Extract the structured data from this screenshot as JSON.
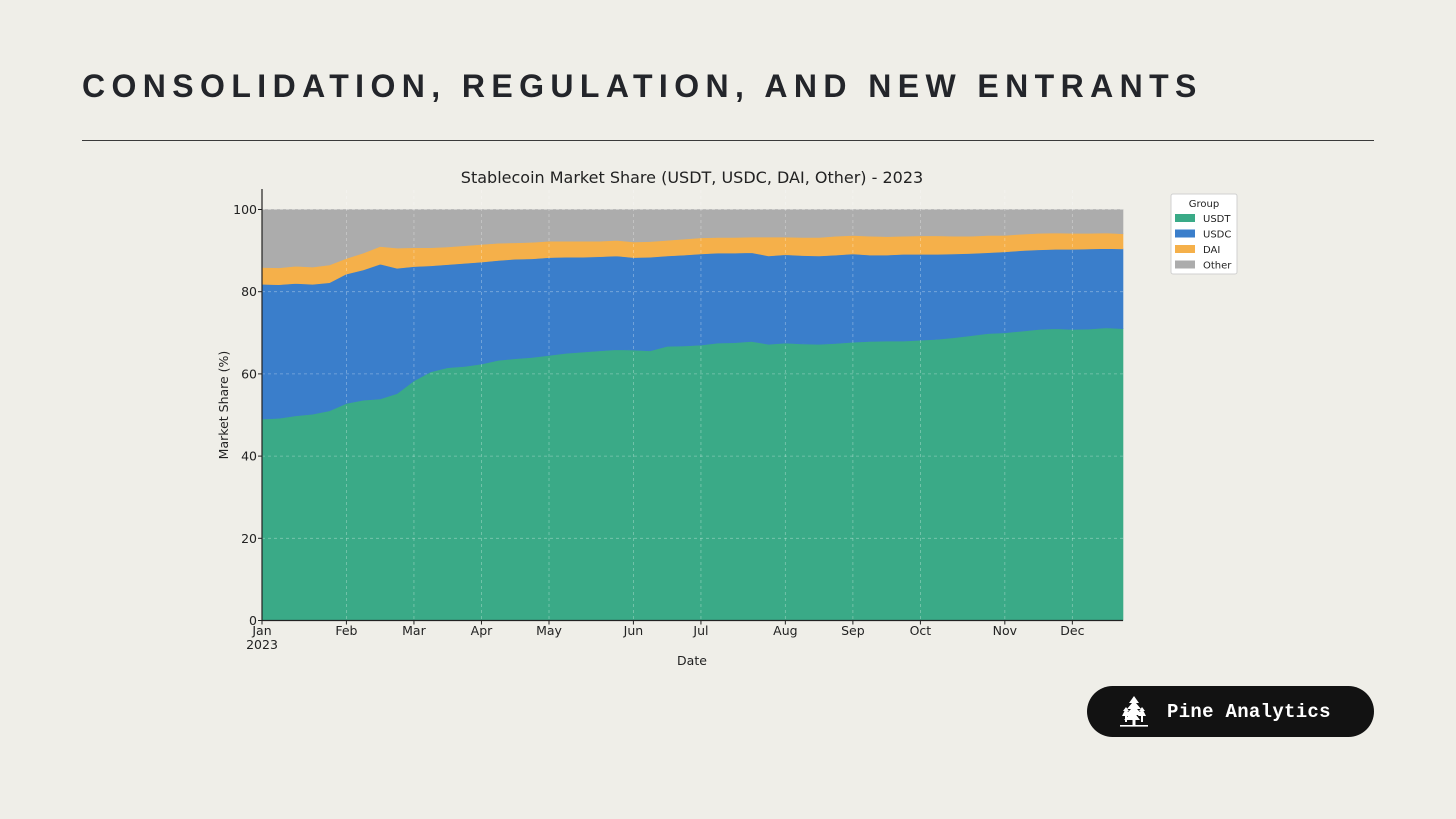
{
  "header": {
    "title": "CONSOLIDATION, REGULATION, AND NEW ENTRANTS"
  },
  "branding": {
    "name": "Pine Analytics",
    "logo_icon": "pine-tree-icon"
  },
  "colors": {
    "background": "#efeee8",
    "USDT": "#3aaa87",
    "USDC": "#3a7ecb",
    "DAI": "#f5b04a",
    "Other": "#acacac"
  },
  "chart_data": {
    "type": "area",
    "stacked": true,
    "title": "Stablecoin Market Share (USDT, USDC, DAI, Other) - 2023",
    "xlabel": "Date",
    "ylabel": "Market Share (%)",
    "ylim": [
      0,
      100
    ],
    "yticks": [
      0,
      20,
      40,
      60,
      80,
      100
    ],
    "xrange_days": [
      0,
      357
    ],
    "xticks": [
      {
        "day": 0,
        "label": "Jan",
        "sublabel": "2023"
      },
      {
        "day": 35,
        "label": "Feb"
      },
      {
        "day": 63,
        "label": "Mar"
      },
      {
        "day": 91,
        "label": "Apr"
      },
      {
        "day": 119,
        "label": "May"
      },
      {
        "day": 154,
        "label": "Jun"
      },
      {
        "day": 182,
        "label": "Jul"
      },
      {
        "day": 217,
        "label": "Aug"
      },
      {
        "day": 245,
        "label": "Sep"
      },
      {
        "day": 273,
        "label": "Oct"
      },
      {
        "day": 308,
        "label": "Nov"
      },
      {
        "day": 336,
        "label": "Dec"
      }
    ],
    "grid": true,
    "legend": {
      "title": "Group",
      "placement": "outside-top-right"
    },
    "x": [
      0,
      7,
      14,
      21,
      28,
      35,
      42,
      49,
      56,
      63,
      70,
      77,
      84,
      91,
      98,
      105,
      112,
      119,
      126,
      133,
      140,
      147,
      154,
      161,
      168,
      175,
      182,
      189,
      196,
      203,
      210,
      217,
      224,
      231,
      238,
      245,
      252,
      259,
      266,
      273,
      280,
      287,
      294,
      301,
      308,
      315,
      322,
      329,
      336,
      343,
      350,
      357
    ],
    "series": [
      {
        "name": "USDT",
        "values": [
          49.0,
          49.2,
          49.8,
          50.2,
          51.0,
          52.8,
          53.6,
          53.9,
          55.2,
          58.3,
          60.5,
          61.5,
          61.8,
          62.4,
          63.3,
          63.7,
          64.0,
          64.5,
          65.0,
          65.3,
          65.6,
          65.9,
          65.8,
          65.6,
          66.7,
          66.8,
          67.0,
          67.5,
          67.6,
          67.9,
          67.2,
          67.5,
          67.3,
          67.2,
          67.4,
          67.7,
          67.9,
          68.0,
          68.0,
          68.2,
          68.4,
          68.8,
          69.3,
          69.8,
          70.0,
          70.4,
          70.8,
          71.0,
          70.8,
          70.9,
          71.2,
          71.0
        ]
      },
      {
        "name": "USDC",
        "values": [
          32.8,
          32.5,
          32.2,
          31.6,
          31.2,
          31.5,
          31.7,
          32.8,
          30.5,
          27.8,
          25.8,
          25.1,
          25.1,
          24.8,
          24.3,
          24.2,
          24.0,
          23.8,
          23.4,
          23.1,
          22.9,
          22.8,
          22.5,
          22.8,
          22.0,
          22.1,
          22.2,
          21.9,
          21.8,
          21.6,
          21.5,
          21.5,
          21.5,
          21.5,
          21.5,
          21.5,
          21.0,
          20.9,
          21.1,
          20.9,
          20.7,
          20.4,
          20.0,
          19.7,
          19.7,
          19.6,
          19.4,
          19.3,
          19.5,
          19.5,
          19.3,
          19.4
        ]
      },
      {
        "name": "DAI",
        "values": [
          4.1,
          4.1,
          4.2,
          4.2,
          4.3,
          3.8,
          4.1,
          4.3,
          4.9,
          4.6,
          4.4,
          4.3,
          4.3,
          4.3,
          4.2,
          4.0,
          4.0,
          4.0,
          3.9,
          3.9,
          3.8,
          3.8,
          3.8,
          3.8,
          3.8,
          3.9,
          3.9,
          3.8,
          3.8,
          3.8,
          4.6,
          4.3,
          4.4,
          4.5,
          4.6,
          4.5,
          4.6,
          4.5,
          4.4,
          4.5,
          4.5,
          4.3,
          4.2,
          4.2,
          4.0,
          4.0,
          4.0,
          4.0,
          3.9,
          3.8,
          3.8,
          3.7
        ]
      },
      {
        "name": "Other",
        "values": [
          14.1,
          14.2,
          13.8,
          14.0,
          13.5,
          11.9,
          10.6,
          9.0,
          9.4,
          9.3,
          9.3,
          9.1,
          8.8,
          8.5,
          8.2,
          8.1,
          8.0,
          7.7,
          7.7,
          7.7,
          7.7,
          7.5,
          7.9,
          7.8,
          7.5,
          7.2,
          6.9,
          6.8,
          6.8,
          6.7,
          6.7,
          6.7,
          6.8,
          6.8,
          6.5,
          6.3,
          6.5,
          6.6,
          6.5,
          6.4,
          6.4,
          6.5,
          6.5,
          6.3,
          6.3,
          6.0,
          5.8,
          5.7,
          5.8,
          5.8,
          5.7,
          5.9
        ]
      }
    ]
  }
}
